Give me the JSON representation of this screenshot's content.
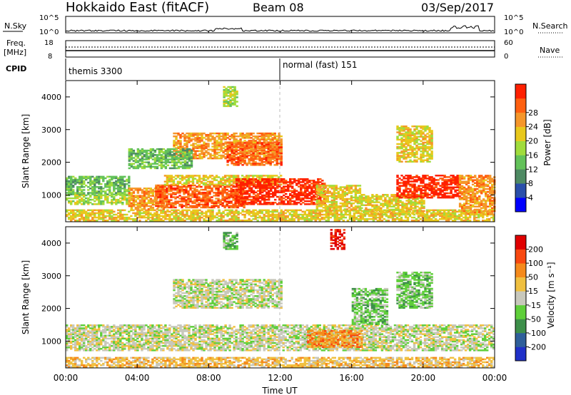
{
  "header": {
    "title": "Hokkaido East (fitACF)",
    "beam": "Beam 08",
    "date": "03/Sep/2017"
  },
  "noise_panel": {
    "left_label": "N.Sky",
    "right_label": "N.Search",
    "left_ticks": [
      "10^5",
      "10^0"
    ],
    "right_ticks": [
      "10^5",
      "10^0"
    ]
  },
  "freq_panel": {
    "label_line1": "Freq.",
    "label_line2": "[MHz]",
    "left_ticks": [
      "18",
      "8"
    ],
    "right_ticks": [
      "60",
      "0"
    ],
    "right_label": "Nave"
  },
  "cpid_panel": {
    "label": "CPID",
    "modes": [
      {
        "name": "themis 3300",
        "start_hour": 0
      },
      {
        "name": "normal (fast) 151",
        "start_hour": 12
      }
    ]
  },
  "chart_data": [
    {
      "type": "heatmap",
      "title": "",
      "xlabel": "Time UT",
      "ylabel": "Slant Range [km]",
      "x_ticks": [
        "00:00",
        "04:00",
        "08:00",
        "12:00",
        "16:00",
        "20:00",
        "00:00"
      ],
      "xlim_hours": [
        0,
        24
      ],
      "ylim_km": [
        180,
        4500
      ],
      "y_ticks": [
        1000,
        2000,
        3000,
        4000
      ],
      "colorbar": {
        "label": "Power [dB]",
        "ticks": [
          "4",
          "8",
          "12",
          "16",
          "20",
          "24",
          "28"
        ],
        "colors": [
          "#0000ff",
          "#2a4faa",
          "#4e8a63",
          "#63c25a",
          "#a0dc3c",
          "#e8c81c",
          "#f5962a",
          "#ff6010",
          "#ff2000"
        ]
      },
      "regions": [
        {
          "t0": 0,
          "t1": 3.5,
          "r0": 1000,
          "r1": 1550,
          "level": 3
        },
        {
          "t0": 0,
          "t1": 3.5,
          "r0": 700,
          "r1": 1000,
          "level": 4
        },
        {
          "t0": 0,
          "t1": 24,
          "r0": 200,
          "r1": 550,
          "level": 5
        },
        {
          "t0": 3.5,
          "t1": 5.5,
          "r0": 550,
          "r1": 1200,
          "level": 6
        },
        {
          "t0": 5,
          "t1": 10,
          "r0": 600,
          "r1": 1300,
          "level": 7
        },
        {
          "t0": 5.5,
          "t1": 12,
          "r0": 1300,
          "r1": 1600,
          "level": 5
        },
        {
          "t0": 9.5,
          "t1": 14.5,
          "r0": 700,
          "r1": 1500,
          "level": 8
        },
        {
          "t0": 14,
          "t1": 16.5,
          "r0": 500,
          "r1": 1300,
          "level": 5
        },
        {
          "t0": 16.5,
          "t1": 20,
          "r0": 400,
          "r1": 1000,
          "level": 5
        },
        {
          "t0": 18.5,
          "t1": 22,
          "r0": 900,
          "r1": 1600,
          "level": 8
        },
        {
          "t0": 22,
          "t1": 24,
          "r0": 400,
          "r1": 1600,
          "level": 6
        },
        {
          "t0": 6,
          "t1": 12,
          "r0": 2100,
          "r1": 2900,
          "level": 6
        },
        {
          "t0": 9,
          "t1": 12,
          "r0": 1900,
          "r1": 2600,
          "level": 7
        },
        {
          "t0": 3.5,
          "t1": 7,
          "r0": 1800,
          "r1": 2400,
          "level": 3
        },
        {
          "t0": 18.5,
          "t1": 20.5,
          "r0": 2000,
          "r1": 3100,
          "level": 5
        },
        {
          "t0": 8.8,
          "t1": 9.6,
          "r0": 3700,
          "r1": 4300,
          "level": 4
        }
      ]
    },
    {
      "type": "heatmap",
      "title": "",
      "xlabel": "Time UT",
      "ylabel": "Slant Range [km]",
      "x_ticks": [
        "00:00",
        "04:00",
        "08:00",
        "12:00",
        "16:00",
        "20:00",
        "00:00"
      ],
      "xlim_hours": [
        0,
        24
      ],
      "ylim_km": [
        180,
        4500
      ],
      "y_ticks": [
        1000,
        2000,
        3000,
        4000
      ],
      "colorbar": {
        "label": "Velocity [m s⁻¹]",
        "ticks": [
          "200",
          "100",
          "50",
          "15",
          "-15",
          "-50",
          "-100",
          "-200"
        ],
        "colors": [
          "#2030c8",
          "#2f5f9a",
          "#3d8f4a",
          "#5fcf3a",
          "#c8c8bc",
          "#f0c040",
          "#f58a1c",
          "#f84810",
          "#e00000"
        ]
      },
      "regions": [
        {
          "t0": 0,
          "t1": 24,
          "r0": 700,
          "r1": 1500,
          "level": 4
        },
        {
          "t0": 0,
          "t1": 24,
          "r0": 200,
          "r1": 500,
          "level": 5
        },
        {
          "t0": 6,
          "t1": 12,
          "r0": 2000,
          "r1": 2900,
          "level": 4
        },
        {
          "t0": 13.5,
          "t1": 16.5,
          "r0": 800,
          "r1": 1300,
          "level": 6
        },
        {
          "t0": 16,
          "t1": 18,
          "r0": 1500,
          "r1": 2600,
          "level": 3
        },
        {
          "t0": 18.5,
          "t1": 20.5,
          "r0": 2000,
          "r1": 3100,
          "level": 3
        },
        {
          "t0": 14.8,
          "t1": 15.6,
          "r0": 3800,
          "r1": 4400,
          "level": 8
        },
        {
          "t0": 8.8,
          "t1": 9.6,
          "r0": 3800,
          "r1": 4300,
          "level": 3
        }
      ]
    }
  ]
}
